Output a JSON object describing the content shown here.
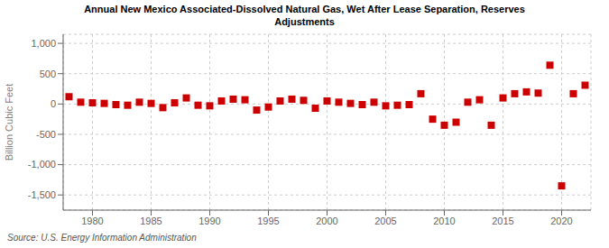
{
  "chart_data": {
    "type": "scatter",
    "title": "Annual New Mexico Associated-Dissolved Natural Gas, Wet After Lease Separation, Reserves\nAdjustments",
    "y_label": "Billion Cubic Feet",
    "annotations": [
      "Source: U.S. Energy Information Administration"
    ],
    "color": "#cc0000",
    "marker": "square",
    "grid": true,
    "xlim": [
      1977.5,
      2022.5
    ],
    "ylim": [
      -1750,
      1150
    ],
    "xticks": [
      1980,
      1985,
      1990,
      1995,
      2000,
      2005,
      2010,
      2015,
      2020
    ],
    "yticks": [
      {
        "value": -1500,
        "label": "-1,500"
      },
      {
        "value": -1000,
        "label": "-1,000"
      },
      -500,
      0,
      500,
      {
        "value": 1000,
        "label": "1,000"
      }
    ],
    "x": [
      1978,
      1979,
      1980,
      1981,
      1982,
      1983,
      1984,
      1985,
      1986,
      1987,
      1988,
      1989,
      1990,
      1991,
      1992,
      1993,
      1994,
      1995,
      1996,
      1997,
      1998,
      1999,
      2000,
      2001,
      2002,
      2003,
      2004,
      2005,
      2006,
      2007,
      2008,
      2009,
      2010,
      2011,
      2012,
      2013,
      2014,
      2015,
      2016,
      2017,
      2018,
      2019,
      2020,
      2021,
      2022
    ],
    "values": [
      120,
      30,
      20,
      10,
      -10,
      -20,
      30,
      10,
      -60,
      20,
      100,
      -20,
      -30,
      50,
      80,
      70,
      -100,
      -50,
      50,
      80,
      60,
      -70,
      50,
      30,
      10,
      -10,
      30,
      -30,
      -20,
      -10,
      170,
      -250,
      -350,
      -300,
      30,
      70,
      -350,
      100,
      170,
      200,
      180,
      640,
      -1350,
      170,
      310
    ]
  }
}
